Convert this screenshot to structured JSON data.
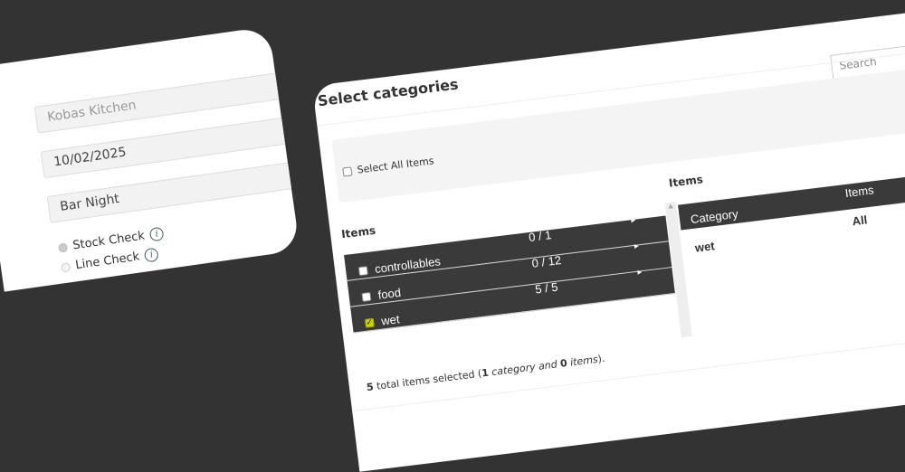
{
  "left_form": {
    "location": "Kobas Kitchen",
    "date": "10/02/2025",
    "name": "Bar Night",
    "check_types": [
      {
        "label": "Stock Check",
        "selected": true
      },
      {
        "label": "Line Check",
        "selected": false
      }
    ],
    "info_glyph": "i"
  },
  "dialog": {
    "title": "Select categories",
    "search_placeholder": "Search",
    "select_all_label": "Select All Items",
    "left_heading": "Items",
    "right_heading": "Items",
    "categories": [
      {
        "name": "controllables",
        "count": "0 / 1",
        "checked": false
      },
      {
        "name": "food",
        "count": "0 / 12",
        "checked": false
      },
      {
        "name": "wet",
        "count": "5 / 5",
        "checked": true
      }
    ],
    "selected_table": {
      "headers": [
        "Category",
        "Items"
      ],
      "rows": [
        [
          "wet",
          "All"
        ]
      ]
    },
    "summary": {
      "total": "5",
      "text1": " total items selected (",
      "categories": "1",
      "text2": " category and ",
      "items": "0",
      "text3": " items",
      "text4": ")."
    },
    "accent_color": "#c8d400"
  }
}
